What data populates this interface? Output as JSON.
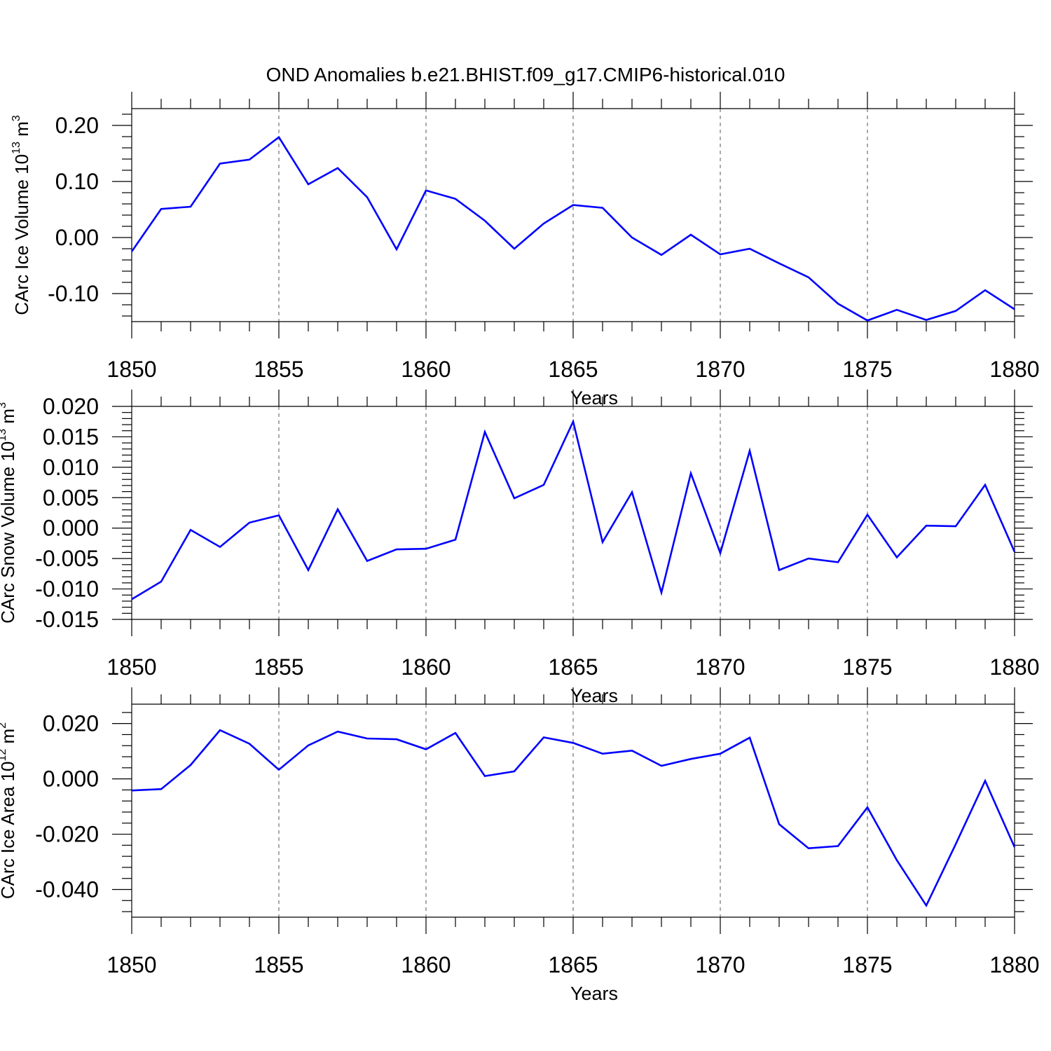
{
  "chart_data": [
    {
      "type": "line",
      "id": "ice-volume",
      "title": "OND Anomalies b.e21.BHIST.f09_g17.CMIP6-historical.010",
      "xlabel": "Years",
      "ylabel": {
        "text": "CArc Ice Volume 10",
        "exp": "13",
        "unit": " m",
        "unit_exp": "3"
      },
      "xlim": [
        1850,
        1880
      ],
      "ylim": [
        -0.15,
        0.23
      ],
      "xticks": [
        1850,
        1855,
        1860,
        1865,
        1870,
        1875,
        1880
      ],
      "xtick_labels": [
        "1850",
        "1855",
        "1860",
        "1865",
        "1870",
        "1875",
        "1880"
      ],
      "yticks": [
        -0.1,
        0.0,
        0.1,
        0.2
      ],
      "ytick_labels": [
        "-0.10",
        "0.00",
        "0.10",
        "0.20"
      ],
      "yminor_step": 0.02,
      "grid": "vertical dashed at major x ticks",
      "series": [
        {
          "name": "CArc Ice Volume",
          "color": "#0000ff",
          "x": [
            1850,
            1851,
            1852,
            1853,
            1854,
            1855,
            1856,
            1857,
            1858,
            1859,
            1860,
            1861,
            1862,
            1863,
            1864,
            1865,
            1866,
            1867,
            1868,
            1869,
            1870,
            1871,
            1872,
            1873,
            1874,
            1875,
            1876,
            1877,
            1878,
            1879,
            1880
          ],
          "values": [
            -0.025,
            0.051,
            0.055,
            0.132,
            0.139,
            0.179,
            0.095,
            0.124,
            0.072,
            -0.021,
            0.084,
            0.069,
            0.03,
            -0.02,
            0.025,
            0.058,
            0.053,
            0.0,
            -0.031,
            0.005,
            -0.03,
            -0.02,
            -0.046,
            -0.071,
            -0.118,
            -0.148,
            -0.129,
            -0.147,
            -0.131,
            -0.094,
            -0.128
          ]
        }
      ]
    },
    {
      "type": "line",
      "id": "snow-volume",
      "xlabel": "Years",
      "ylabel": {
        "text": "CArc Snow Volume 10",
        "exp": "13",
        "unit": " m",
        "unit_exp": "3"
      },
      "xlim": [
        1850,
        1880
      ],
      "ylim": [
        -0.015,
        0.02
      ],
      "xticks": [
        1850,
        1855,
        1860,
        1865,
        1870,
        1875,
        1880
      ],
      "xtick_labels": [
        "1850",
        "1855",
        "1860",
        "1865",
        "1870",
        "1875",
        "1880"
      ],
      "yticks": [
        -0.015,
        -0.01,
        -0.005,
        0.0,
        0.005,
        0.01,
        0.015,
        0.02
      ],
      "ytick_labels": [
        "-0.015",
        "-0.010",
        "-0.005",
        "0.000",
        "0.005",
        "0.010",
        "0.015",
        "0.020"
      ],
      "yminor_step": 0.001,
      "grid": "vertical dashed at major x ticks",
      "series": [
        {
          "name": "CArc Snow Volume",
          "color": "#0000ff",
          "x": [
            1850,
            1851,
            1852,
            1853,
            1854,
            1855,
            1856,
            1857,
            1858,
            1859,
            1860,
            1861,
            1862,
            1863,
            1864,
            1865,
            1866,
            1867,
            1868,
            1869,
            1870,
            1871,
            1872,
            1873,
            1874,
            1875,
            1876,
            1877,
            1878,
            1879,
            1880
          ],
          "values": [
            -0.0117,
            -0.0088,
            -0.0003,
            -0.0031,
            0.0009,
            0.0021,
            -0.0069,
            0.0031,
            -0.0054,
            -0.0035,
            -0.0034,
            -0.0019,
            0.0158,
            0.0049,
            0.0071,
            0.0175,
            -0.0023,
            0.0059,
            -0.0106,
            0.009,
            -0.0041,
            0.0127,
            -0.0069,
            -0.005,
            -0.0056,
            0.0022,
            -0.0048,
            0.0004,
            0.0003,
            0.0071,
            -0.0039
          ]
        }
      ]
    },
    {
      "type": "line",
      "id": "ice-area",
      "xlabel": "Years",
      "ylabel": {
        "text": "CArc Ice Area 10",
        "exp": "12",
        "unit": " m",
        "unit_exp": "2"
      },
      "xlim": [
        1850,
        1880
      ],
      "ylim": [
        -0.05,
        0.027
      ],
      "xticks": [
        1850,
        1855,
        1860,
        1865,
        1870,
        1875,
        1880
      ],
      "xtick_labels": [
        "1850",
        "1855",
        "1860",
        "1865",
        "1870",
        "1875",
        "1880"
      ],
      "yticks": [
        -0.04,
        -0.02,
        0.0,
        0.02
      ],
      "ytick_labels": [
        "-0.040",
        "-0.020",
        "0.000",
        "0.020"
      ],
      "yminor_step": 0.004,
      "grid": "vertical dashed at major x ticks",
      "series": [
        {
          "name": "CArc Ice Area",
          "color": "#0000ff",
          "x": [
            1850,
            1851,
            1852,
            1853,
            1854,
            1855,
            1856,
            1857,
            1858,
            1859,
            1860,
            1861,
            1862,
            1863,
            1864,
            1865,
            1866,
            1867,
            1868,
            1869,
            1870,
            1871,
            1872,
            1873,
            1874,
            1875,
            1876,
            1877,
            1878,
            1879,
            1880
          ],
          "values": [
            -0.0042,
            -0.0037,
            0.005,
            0.0176,
            0.0127,
            0.0033,
            0.0121,
            0.0171,
            0.0146,
            0.0143,
            0.0107,
            0.0166,
            0.001,
            0.0027,
            0.015,
            0.013,
            0.0091,
            0.0102,
            0.0047,
            0.0072,
            0.0091,
            0.0149,
            -0.0164,
            -0.0251,
            -0.0243,
            -0.0103,
            -0.0294,
            -0.0458,
            -0.0236,
            -0.0007,
            -0.0247
          ]
        }
      ]
    }
  ]
}
